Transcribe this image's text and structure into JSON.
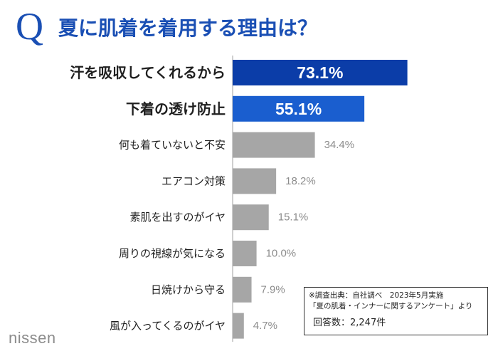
{
  "header": {
    "q_mark": "Q",
    "title": "夏に肌着を着用する理由は？"
  },
  "chart_data": {
    "type": "bar",
    "orientation": "horizontal",
    "categories": [
      "汗を吸収してくれるから",
      "下着の透け防止",
      "何も着ていないと不安",
      "エアコン対策",
      "素肌を出すのがイヤ",
      "周りの視線が気になる",
      "日焼けから守る",
      "風が入ってくるのがイヤ"
    ],
    "values": [
      73.1,
      55.1,
      34.4,
      18.2,
      15.1,
      10.0,
      7.9,
      4.7
    ],
    "value_labels": [
      "73.1%",
      "55.1%",
      "34.4%",
      "18.2%",
      "15.1%",
      "10.0%",
      "7.9%",
      "4.7%"
    ],
    "bar_colors": [
      "#0b3da8",
      "#1a5ecf",
      "#a6a6a6",
      "#a6a6a6",
      "#a6a6a6",
      "#a6a6a6",
      "#a6a6a6",
      "#a6a6a6"
    ],
    "highlight_count": 2,
    "xlim": [
      0,
      100
    ],
    "grid": false,
    "axis_color": "#bfbfbf"
  },
  "source": {
    "line1": "※調査出典：自社調べ　2023年5月実施",
    "line2": "「夏の肌着・インナーに関するアンケート」より",
    "count": "回答数：2,247件"
  },
  "logo": {
    "text": "nissen"
  }
}
